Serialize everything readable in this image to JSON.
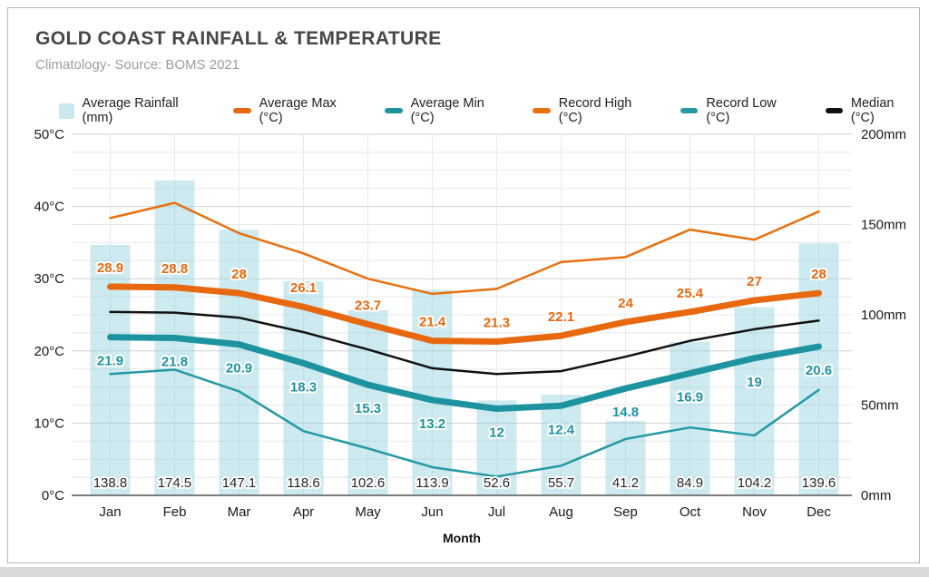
{
  "header": {
    "title": "GOLD COAST RAINFALL & TEMPERATURE",
    "subtitle": "Climatology- Source: BOMS 2021"
  },
  "chart_data": {
    "type": "bar",
    "title": "GOLD COAST RAINFALL & TEMPERATURE",
    "subtitle": "Climatology- Source: BOMS 2021",
    "categories": [
      "Jan",
      "Feb",
      "Mar",
      "Apr",
      "May",
      "Jun",
      "Jul",
      "Aug",
      "Sep",
      "Oct",
      "Nov",
      "Dec"
    ],
    "xlabel": "Month",
    "legend_position": "top",
    "grid": true,
    "y_left": {
      "min": 0,
      "max": 50,
      "minor_step": 2.5,
      "tick_labels": [
        "0°C",
        "10°C",
        "20°C",
        "30°C",
        "40°C",
        "50°C"
      ]
    },
    "y_right": {
      "min": 0,
      "max": 200,
      "tick_labels": [
        "0mm",
        "50mm",
        "100mm",
        "150mm",
        "200mm"
      ]
    },
    "series": [
      {
        "name": "Average Rainfall (mm)",
        "type": "bar",
        "axis": "right",
        "color": "#8fd0de",
        "legend_color": "#c9e8f0",
        "values": [
          138.8,
          174.5,
          147.1,
          118.6,
          102.6,
          113.9,
          52.6,
          55.7,
          41.2,
          84.9,
          104.2,
          139.6
        ],
        "labels": "base"
      },
      {
        "name": "Average Max (°C)",
        "type": "line",
        "axis": "left",
        "color": "#e8680f",
        "width": 7,
        "values": [
          28.9,
          28.8,
          28,
          26.1,
          23.7,
          21.4,
          21.3,
          22.1,
          24,
          25.4,
          27,
          28
        ],
        "labels": "above"
      },
      {
        "name": "Average Min (°C)",
        "type": "line",
        "axis": "left",
        "color": "#1e93a0",
        "width": 7,
        "values": [
          21.9,
          21.8,
          20.9,
          18.3,
          15.3,
          13.2,
          12,
          12.4,
          14.8,
          16.9,
          19,
          20.6
        ],
        "labels": "below"
      },
      {
        "name": "Record High (°C)",
        "type": "line",
        "axis": "left",
        "color": "#e8710f",
        "width": 2.5,
        "values": [
          38.4,
          40.5,
          36.3,
          33.5,
          30,
          27.9,
          28.6,
          32.3,
          33,
          36.8,
          35.4,
          39.3
        ],
        "labels": "none"
      },
      {
        "name": "Record Low (°C)",
        "type": "line",
        "axis": "left",
        "color": "#2599a4",
        "width": 2.5,
        "values": [
          16.8,
          17.4,
          14.4,
          8.9,
          6.5,
          3.9,
          2.6,
          4.1,
          7.8,
          9.4,
          8.3,
          14.6
        ],
        "labels": "none"
      },
      {
        "name": "Median  (°C)",
        "type": "line",
        "axis": "left",
        "color": "#111111",
        "width": 2.5,
        "values": [
          25.4,
          25.3,
          24.6,
          22.6,
          20.2,
          17.6,
          16.8,
          17.2,
          19.2,
          21.4,
          23,
          24.2
        ],
        "labels": "none"
      }
    ]
  }
}
